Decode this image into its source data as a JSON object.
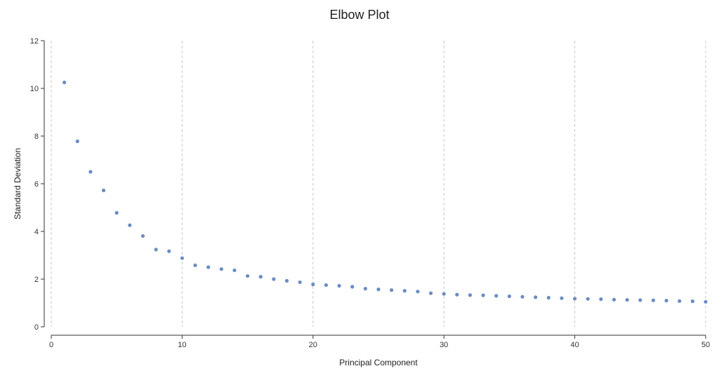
{
  "chart_data": {
    "type": "scatter",
    "title": "Elbow Plot",
    "xlabel": "Principal Component",
    "ylabel": "Standard Deviation",
    "xlim": [
      0,
      50
    ],
    "ylim": [
      0,
      12
    ],
    "x_ticks": [
      0,
      10,
      20,
      30,
      40,
      50
    ],
    "y_ticks": [
      0,
      2,
      4,
      6,
      8,
      10,
      12
    ],
    "grid": "vertical dashed at x ticks",
    "colors": {
      "points": "#6b8cc4"
    },
    "x": [
      1,
      2,
      3,
      4,
      5,
      6,
      7,
      8,
      9,
      10,
      11,
      12,
      13,
      14,
      15,
      16,
      17,
      18,
      19,
      20,
      21,
      22,
      23,
      24,
      25,
      26,
      27,
      28,
      29,
      30,
      31,
      32,
      33,
      34,
      35,
      36,
      37,
      38,
      39,
      40,
      41,
      42,
      43,
      44,
      45,
      46,
      47,
      48,
      49,
      50
    ],
    "y": [
      10.25,
      7.78,
      6.5,
      5.72,
      4.78,
      4.26,
      3.81,
      3.24,
      3.17,
      2.88,
      2.58,
      2.5,
      2.42,
      2.37,
      2.13,
      2.1,
      2.0,
      1.93,
      1.87,
      1.78,
      1.75,
      1.72,
      1.68,
      1.6,
      1.57,
      1.54,
      1.51,
      1.48,
      1.41,
      1.38,
      1.35,
      1.33,
      1.32,
      1.3,
      1.28,
      1.26,
      1.24,
      1.22,
      1.2,
      1.18,
      1.17,
      1.16,
      1.14,
      1.13,
      1.12,
      1.11,
      1.1,
      1.08,
      1.07,
      1.05
    ]
  }
}
